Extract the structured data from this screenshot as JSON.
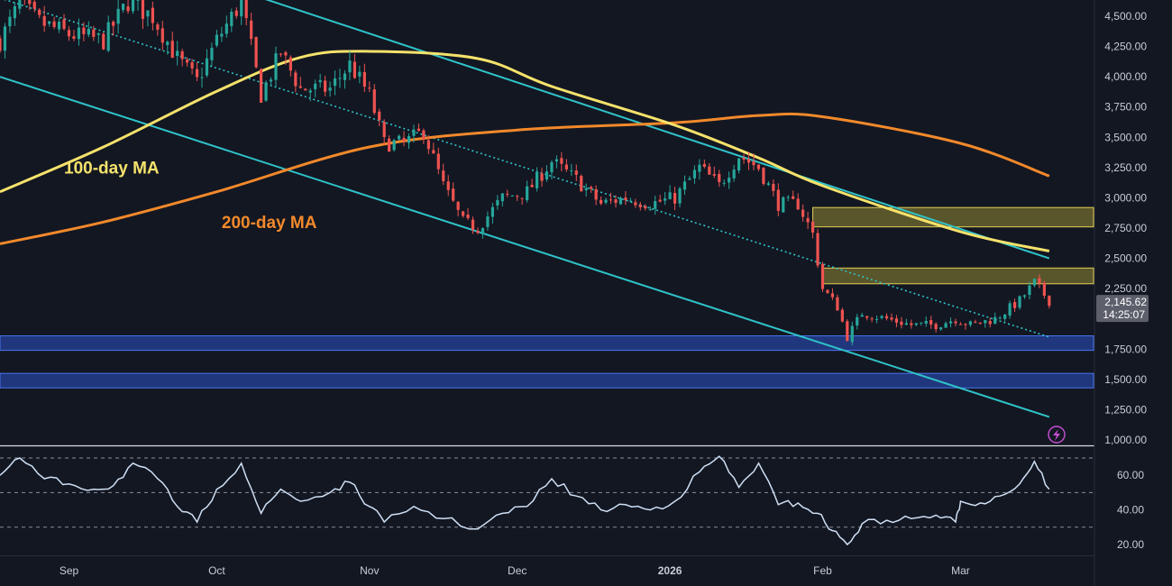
{
  "colors": {
    "background": "#131722",
    "up": "#26a69a",
    "down": "#ef5350",
    "ma100": "#f5e26b",
    "ma200": "#f2892b",
    "channel": "#2fc3c9",
    "resistance_zone": "#b2a33a",
    "support_zone": "#2b52c8",
    "rsi": "#cfe0f5",
    "price_label_bg": "#5d606b"
  },
  "chart_data": [
    {
      "type": "candlestick",
      "title": "",
      "ylim": [
        1000,
        4600
      ],
      "y_ticks": [
        "4,500.00",
        "4,250.00",
        "4,000.00",
        "3,750.00",
        "3,500.00",
        "3,250.00",
        "3,000.00",
        "2,750.00",
        "2,500.00",
        "2,250.00",
        "1,750.00",
        "1,500.00",
        "1,250.00",
        "1,000.00"
      ],
      "y_tick_values": [
        4500,
        4250,
        4000,
        3750,
        3500,
        3250,
        3000,
        2750,
        2500,
        2250,
        1750,
        1500,
        1250,
        1000
      ],
      "x_ticks": [
        "Sep",
        "Oct",
        "Nov",
        "Dec",
        "2026",
        "Feb",
        "Mar"
      ],
      "x_tick_dates": [
        "2025-09-01",
        "2025-10-01",
        "2025-11-01",
        "2025-12-01",
        "2026-01-01",
        "2026-02-01",
        "2026-03-01"
      ],
      "x_range": [
        "2025-08-18",
        "2026-03-28"
      ],
      "current_price": {
        "value": 2145.62,
        "label": "2,145.62",
        "countdown": "14:25:07"
      },
      "close_series": [
        {
          "date": "2025-08-18",
          "close": 4300
        },
        {
          "date": "2025-08-22",
          "close": 4600
        },
        {
          "date": "2025-08-26",
          "close": 4450
        },
        {
          "date": "2025-09-01",
          "close": 4350
        },
        {
          "date": "2025-09-08",
          "close": 4300
        },
        {
          "date": "2025-09-13",
          "close": 4620
        },
        {
          "date": "2025-09-18",
          "close": 4500
        },
        {
          "date": "2025-09-23",
          "close": 4150
        },
        {
          "date": "2025-09-27",
          "close": 3960
        },
        {
          "date": "2025-10-01",
          "close": 4300
        },
        {
          "date": "2025-10-06",
          "close": 4620
        },
        {
          "date": "2025-10-10",
          "close": 3850
        },
        {
          "date": "2025-10-14",
          "close": 4200
        },
        {
          "date": "2025-10-18",
          "close": 3900
        },
        {
          "date": "2025-10-24",
          "close": 3900
        },
        {
          "date": "2025-10-28",
          "close": 4100
        },
        {
          "date": "2025-11-01",
          "close": 3850
        },
        {
          "date": "2025-11-04",
          "close": 3450
        },
        {
          "date": "2025-11-08",
          "close": 3450
        },
        {
          "date": "2025-11-12",
          "close": 3550
        },
        {
          "date": "2025-11-16",
          "close": 3100
        },
        {
          "date": "2025-11-20",
          "close": 2800
        },
        {
          "date": "2025-11-23",
          "close": 2750
        },
        {
          "date": "2025-11-28",
          "close": 3000
        },
        {
          "date": "2025-12-03",
          "close": 3050
        },
        {
          "date": "2025-12-08",
          "close": 3300
        },
        {
          "date": "2025-12-13",
          "close": 3150
        },
        {
          "date": "2025-12-18",
          "close": 2950
        },
        {
          "date": "2025-12-23",
          "close": 3000
        },
        {
          "date": "2025-12-28",
          "close": 2950
        },
        {
          "date": "2026-01-02",
          "close": 3000
        },
        {
          "date": "2026-01-07",
          "close": 3250
        },
        {
          "date": "2026-01-11",
          "close": 3100
        },
        {
          "date": "2026-01-15",
          "close": 3350
        },
        {
          "date": "2026-01-19",
          "close": 3250
        },
        {
          "date": "2026-01-23",
          "close": 2950
        },
        {
          "date": "2026-01-27",
          "close": 2950
        },
        {
          "date": "2026-01-30",
          "close": 2700
        },
        {
          "date": "2026-02-01",
          "close": 2250
        },
        {
          "date": "2026-02-04",
          "close": 2100
        },
        {
          "date": "2026-02-06",
          "close": 1850
        },
        {
          "date": "2026-02-09",
          "close": 2050
        },
        {
          "date": "2026-02-14",
          "close": 2000
        },
        {
          "date": "2026-02-19",
          "close": 1950
        },
        {
          "date": "2026-02-24",
          "close": 1950
        },
        {
          "date": "2026-02-28",
          "close": 2000
        },
        {
          "date": "2026-03-03",
          "close": 1950
        },
        {
          "date": "2026-03-08",
          "close": 2000
        },
        {
          "date": "2026-03-13",
          "close": 2150
        },
        {
          "date": "2026-03-16",
          "close": 2300
        },
        {
          "date": "2026-03-19",
          "close": 2150
        }
      ],
      "ma100": [
        {
          "date": "2025-08-18",
          "value": 3050
        },
        {
          "date": "2025-09-08",
          "value": 3420
        },
        {
          "date": "2025-10-01",
          "value": 3880
        },
        {
          "date": "2025-10-18",
          "value": 4160
        },
        {
          "date": "2025-11-01",
          "value": 4210
        },
        {
          "date": "2025-11-23",
          "value": 4150
        },
        {
          "date": "2025-12-08",
          "value": 3920
        },
        {
          "date": "2026-01-02",
          "value": 3600
        },
        {
          "date": "2026-01-19",
          "value": 3330
        },
        {
          "date": "2026-02-01",
          "value": 3100
        },
        {
          "date": "2026-03-01",
          "value": 2720
        },
        {
          "date": "2026-03-19",
          "value": 2560
        }
      ],
      "ma200": [
        {
          "date": "2025-08-18",
          "value": 2620
        },
        {
          "date": "2025-09-08",
          "value": 2800
        },
        {
          "date": "2025-10-01",
          "value": 3050
        },
        {
          "date": "2025-11-01",
          "value": 3420
        },
        {
          "date": "2025-12-01",
          "value": 3560
        },
        {
          "date": "2026-01-02",
          "value": 3620
        },
        {
          "date": "2026-01-19",
          "value": 3680
        },
        {
          "date": "2026-02-01",
          "value": 3670
        },
        {
          "date": "2026-03-01",
          "value": 3450
        },
        {
          "date": "2026-03-19",
          "value": 3180
        }
      ],
      "channel_upper": [
        {
          "date": "2025-10-05",
          "value": 4720
        },
        {
          "date": "2026-03-19",
          "value": 2500
        }
      ],
      "channel_lower": [
        {
          "date": "2025-08-18",
          "value": 4000
        },
        {
          "date": "2026-03-19",
          "value": 1190
        }
      ],
      "channel_mid_dotted": [
        {
          "date": "2025-08-18",
          "value": 4650
        },
        {
          "date": "2026-03-19",
          "value": 1850
        }
      ],
      "zones": [
        {
          "low": 2760,
          "high": 2920,
          "start": "2026-01-30",
          "kind": "resistance"
        },
        {
          "low": 2290,
          "high": 2420,
          "start": "2026-02-01",
          "kind": "resistance"
        },
        {
          "low": 1740,
          "high": 1860,
          "start": "2025-08-18",
          "kind": "support"
        },
        {
          "low": 1430,
          "high": 1550,
          "start": "2025-08-18",
          "kind": "support"
        }
      ],
      "annotations": [
        {
          "text": "100-day MA",
          "color_key": "ma100",
          "date": "2025-08-31",
          "value": 3200
        },
        {
          "text": "200-day MA",
          "color_key": "ma200",
          "date": "2025-10-02",
          "value": 2750
        }
      ]
    },
    {
      "type": "line",
      "title": "",
      "ylim": [
        13,
        80
      ],
      "y_ticks": [
        "60.00",
        "40.00",
        "20.00"
      ],
      "y_tick_values": [
        60,
        40,
        20
      ],
      "dashed_levels": [
        70,
        50,
        30
      ],
      "series": [
        {
          "values": [
            {
              "date": "2025-08-18",
              "v": 60
            },
            {
              "date": "2025-08-22",
              "v": 70
            },
            {
              "date": "2025-08-27",
              "v": 58
            },
            {
              "date": "2025-09-01",
              "v": 55
            },
            {
              "date": "2025-09-06",
              "v": 52
            },
            {
              "date": "2025-09-10",
              "v": 54
            },
            {
              "date": "2025-09-14",
              "v": 67
            },
            {
              "date": "2025-09-19",
              "v": 58
            },
            {
              "date": "2025-09-23",
              "v": 42
            },
            {
              "date": "2025-09-27",
              "v": 33
            },
            {
              "date": "2025-10-01",
              "v": 52
            },
            {
              "date": "2025-10-06",
              "v": 67
            },
            {
              "date": "2025-10-10",
              "v": 38
            },
            {
              "date": "2025-10-14",
              "v": 52
            },
            {
              "date": "2025-10-18",
              "v": 45
            },
            {
              "date": "2025-10-24",
              "v": 50
            },
            {
              "date": "2025-10-28",
              "v": 56
            },
            {
              "date": "2025-11-01",
              "v": 42
            },
            {
              "date": "2025-11-04",
              "v": 33
            },
            {
              "date": "2025-11-10",
              "v": 42
            },
            {
              "date": "2025-11-16",
              "v": 35
            },
            {
              "date": "2025-11-23",
              "v": 29
            },
            {
              "date": "2025-11-28",
              "v": 38
            },
            {
              "date": "2025-12-03",
              "v": 42
            },
            {
              "date": "2025-12-08",
              "v": 58
            },
            {
              "date": "2025-12-13",
              "v": 48
            },
            {
              "date": "2025-12-18",
              "v": 40
            },
            {
              "date": "2025-12-23",
              "v": 43
            },
            {
              "date": "2025-12-28",
              "v": 40
            },
            {
              "date": "2026-01-02",
              "v": 45
            },
            {
              "date": "2026-01-07",
              "v": 62
            },
            {
              "date": "2026-01-11",
              "v": 71
            },
            {
              "date": "2026-01-15",
              "v": 53
            },
            {
              "date": "2026-01-19",
              "v": 67
            },
            {
              "date": "2026-01-23",
              "v": 43
            },
            {
              "date": "2026-01-27",
              "v": 44
            },
            {
              "date": "2026-01-31",
              "v": 38
            },
            {
              "date": "2026-02-03",
              "v": 28
            },
            {
              "date": "2026-02-06",
              "v": 20
            },
            {
              "date": "2026-02-09",
              "v": 32
            },
            {
              "date": "2026-02-14",
              "v": 34
            },
            {
              "date": "2026-02-19",
              "v": 35
            },
            {
              "date": "2026-02-24",
              "v": 37
            },
            {
              "date": "2026-02-28",
              "v": 33
            },
            {
              "date": "2026-03-01",
              "v": 45
            },
            {
              "date": "2026-03-05",
              "v": 44
            },
            {
              "date": "2026-03-09",
              "v": 48
            },
            {
              "date": "2026-03-13",
              "v": 55
            },
            {
              "date": "2026-03-16",
              "v": 68
            },
            {
              "date": "2026-03-19",
              "v": 52
            }
          ]
        }
      ]
    }
  ]
}
